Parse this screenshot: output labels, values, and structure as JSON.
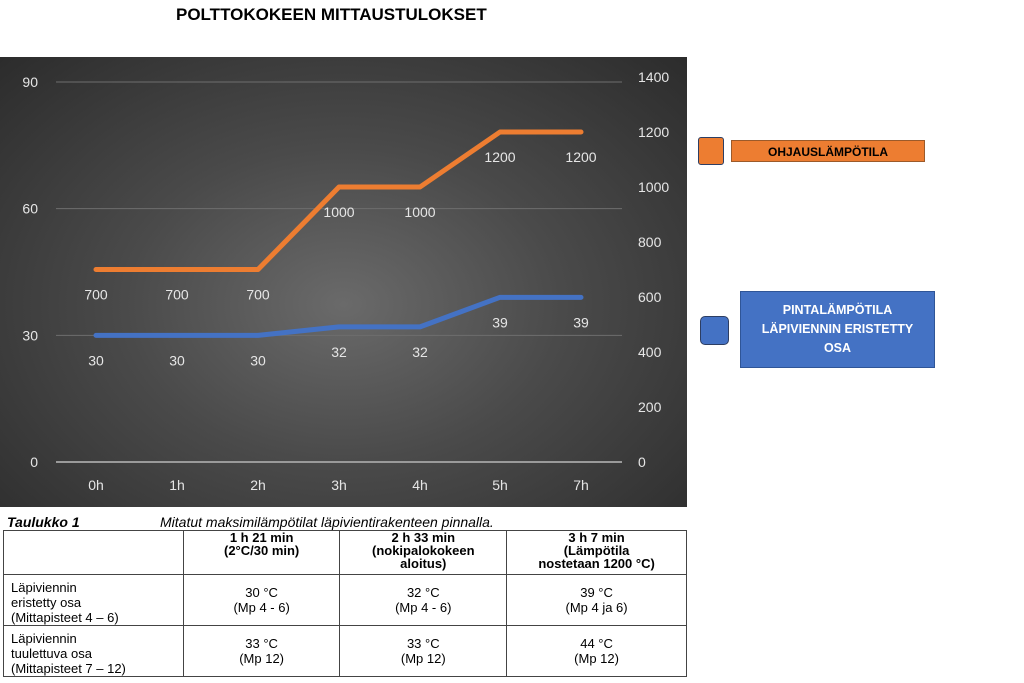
{
  "title": "POLTTOKOKEEN MITTAUSTULOKSET",
  "chart_data": {
    "type": "line",
    "title": "POLTTOKOKEEN MITTAUSTULOKSET",
    "categories": [
      "0h",
      "1h",
      "2h",
      "3h",
      "4h",
      "5h",
      "7h"
    ],
    "y_left": {
      "ylim": [
        0,
        90
      ],
      "ticks": [
        "0",
        "30",
        "60",
        "90"
      ]
    },
    "y_right": {
      "ylim": [
        0,
        1400
      ],
      "ticks": [
        "0",
        "200",
        "400",
        "600",
        "800",
        "1000",
        "1200",
        "1400"
      ]
    },
    "grid": true,
    "legend": "right",
    "series": [
      {
        "name": "OHJAUSLÄMPÖTILA",
        "axis": "right",
        "color": "#ed7d31",
        "values": [
          700,
          700,
          700,
          1000,
          1000,
          1200,
          1200
        ],
        "labels": [
          "700",
          "700",
          "700",
          "1000",
          "1000",
          "1200",
          "1200"
        ]
      },
      {
        "name": "PINTALÄMPÖTILA LÄPIVIENNIN ERISTETTY OSA",
        "axis": "left",
        "color": "#4472c4",
        "values": [
          30,
          30,
          30,
          32,
          32,
          39,
          39
        ],
        "labels": [
          "30",
          "30",
          "30",
          "32",
          "32",
          "39",
          "39"
        ]
      }
    ]
  },
  "legend": {
    "orange_label": "OHJAUSLÄMPÖTILA",
    "blue_line1": "PINTALÄMPÖTILA",
    "blue_line2": "LÄPIVIENNIN ERISTETTY",
    "blue_line3": "OSA"
  },
  "table": {
    "caption_number": "Taulukko 1",
    "caption_text": "Mitatut maksimilämpötilat läpivientirakenteen pinnalla.",
    "headers": [
      {
        "line1": "",
        "line2": "",
        "line3": ""
      },
      {
        "line1": "1 h 21 min",
        "line2": "(2°C/30 min)",
        "line3": ""
      },
      {
        "line1": "2 h 33 min",
        "line2": "(nokipalokokeen",
        "line3": "aloitus)"
      },
      {
        "line1": "3 h 7 min",
        "line2": "(Lämpötila",
        "line3": "nostetaan 1200 °C)"
      }
    ],
    "rows": [
      {
        "label1": "Läpiviennin",
        "label2": "eristetty osa",
        "label3": "(Mittapisteet 4 – 6)",
        "cells": [
          [
            "30 °C",
            "(Mp 4 - 6)"
          ],
          [
            "32 °C",
            "(Mp 4 - 6)"
          ],
          [
            "39 °C",
            "(Mp 4 ja 6)"
          ]
        ]
      },
      {
        "label1": "Läpiviennin",
        "label2": "tuulettuva osa",
        "label3": "(Mittapisteet 7 – 12)",
        "cells": [
          [
            "33 °C",
            "(Mp 12)"
          ],
          [
            "33 °C",
            "(Mp 12)"
          ],
          [
            "44 °C",
            "(Mp 12)"
          ]
        ]
      }
    ]
  }
}
